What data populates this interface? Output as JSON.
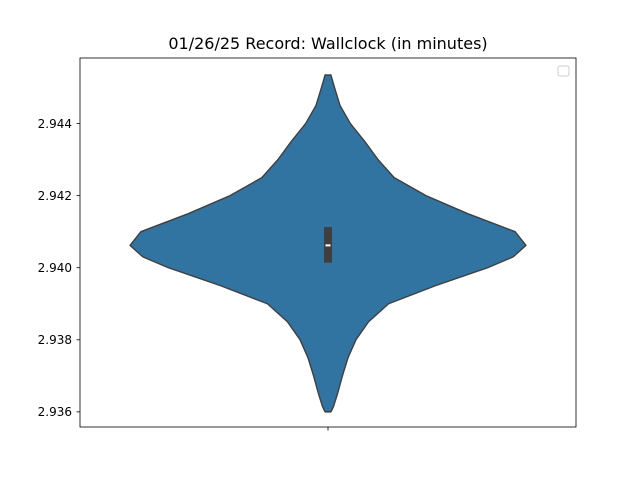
{
  "chart_data": {
    "type": "violin",
    "title": "01/26/25 Record: Wallclock (in minutes)",
    "xlabel": "",
    "ylabel": "",
    "ylim": [
      2.93558,
      2.94582
    ],
    "yticks": [
      2.936,
      2.938,
      2.94,
      2.942,
      2.944
    ],
    "ytick_labels": [
      "2.936",
      "2.938",
      "2.940",
      "2.942",
      "2.944"
    ],
    "xticks": [
      ""
    ],
    "legend": {
      "position": "top-right",
      "entries": []
    },
    "grid": false,
    "color": "#3274a1",
    "edge_color": "#3f3f3f",
    "box_color": "#3f3f3f",
    "median_color": "#ffffff",
    "violin": {
      "y_min": 2.936,
      "y_max": 2.94535,
      "median": 2.94062,
      "q1": 2.94014,
      "q3": 2.94113,
      "density_profile": [
        {
          "y": 2.936,
          "w": 0.015
        },
        {
          "y": 2.93615,
          "w": 0.028
        },
        {
          "y": 2.9365,
          "w": 0.048
        },
        {
          "y": 2.937,
          "w": 0.073
        },
        {
          "y": 2.9375,
          "w": 0.101
        },
        {
          "y": 2.938,
          "w": 0.141
        },
        {
          "y": 2.9385,
          "w": 0.205
        },
        {
          "y": 2.939,
          "w": 0.306
        },
        {
          "y": 2.9395,
          "w": 0.542
        },
        {
          "y": 2.94,
          "w": 0.806
        },
        {
          "y": 2.9403,
          "w": 0.935
        },
        {
          "y": 2.94062,
          "w": 1.0
        },
        {
          "y": 2.941,
          "w": 0.945
        },
        {
          "y": 2.9415,
          "w": 0.706
        },
        {
          "y": 2.942,
          "w": 0.495
        },
        {
          "y": 2.9425,
          "w": 0.334
        },
        {
          "y": 2.943,
          "w": 0.253
        },
        {
          "y": 2.9435,
          "w": 0.186
        },
        {
          "y": 2.944,
          "w": 0.113
        },
        {
          "y": 2.9445,
          "w": 0.061
        },
        {
          "y": 2.945,
          "w": 0.033
        },
        {
          "y": 2.9453,
          "w": 0.017
        },
        {
          "y": 2.94535,
          "w": 0.015
        }
      ]
    }
  }
}
